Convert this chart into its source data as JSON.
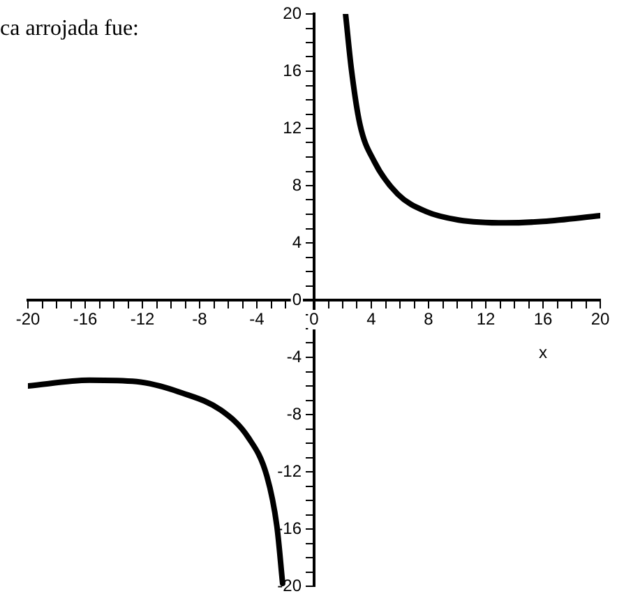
{
  "chart_data": {
    "type": "line",
    "xlabel": "x",
    "annotations": [
      "ca arrojada fue:"
    ],
    "series": [
      {
        "color": "#000000",
        "x": [
          2.2,
          2.6,
          3.2,
          4.2,
          5.85,
          7.8,
          10.1,
          13.4,
          16,
          20
        ],
        "values": [
          20,
          16.2,
          12.3,
          9.7,
          7.4,
          6.2,
          5.6,
          5.4,
          5.5,
          5.9
        ]
      },
      {
        "color": "#000000",
        "x": [
          -20,
          -15.7,
          -12.4,
          -9.2,
          -6.5,
          -4.6,
          -3.3,
          -2.6,
          -2.2
        ],
        "values": [
          -6,
          -5.6,
          -5.7,
          -6.5,
          -7.7,
          -9.6,
          -12.3,
          -15.8,
          -19.8
        ]
      }
    ],
    "xlim": [
      -20,
      20
    ],
    "ylim": [
      -20,
      20
    ],
    "xticks": [
      -20,
      {
        "value": -19,
        "label": null
      },
      {
        "value": -18,
        "label": null
      },
      {
        "value": -17,
        "label": null
      },
      -16,
      {
        "value": -15,
        "label": null
      },
      {
        "value": -14,
        "label": null
      },
      {
        "value": -13,
        "label": null
      },
      -12,
      {
        "value": -11,
        "label": null
      },
      {
        "value": -10,
        "label": null
      },
      {
        "value": -9,
        "label": null
      },
      -8,
      {
        "value": -7,
        "label": null
      },
      {
        "value": -6,
        "label": null
      },
      {
        "value": -5,
        "label": null
      },
      -4,
      {
        "value": -3,
        "label": null
      },
      {
        "value": -2,
        "label": null
      },
      {
        "value": -1,
        "label": null
      },
      0,
      {
        "value": 1,
        "label": null
      },
      {
        "value": 2,
        "label": null
      },
      {
        "value": 3,
        "label": null
      },
      4,
      {
        "value": 5,
        "label": null
      },
      {
        "value": 6,
        "label": null
      },
      {
        "value": 7,
        "label": null
      },
      8,
      {
        "value": 9,
        "label": null
      },
      {
        "value": 10,
        "label": null
      },
      {
        "value": 11,
        "label": null
      },
      12,
      {
        "value": 13,
        "label": null
      },
      {
        "value": 14,
        "label": null
      },
      {
        "value": 15,
        "label": null
      },
      16,
      {
        "value": 17,
        "label": null
      },
      {
        "value": 18,
        "label": null
      },
      {
        "value": 19,
        "label": null
      },
      20
    ],
    "yticks": [
      -20,
      {
        "value": -19,
        "label": null
      },
      {
        "value": -18,
        "label": null
      },
      {
        "value": -17,
        "label": null
      },
      -16,
      {
        "value": -15,
        "label": null
      },
      {
        "value": -14,
        "label": null
      },
      {
        "value": -13,
        "label": null
      },
      -12,
      {
        "value": -11,
        "label": null
      },
      {
        "value": -10,
        "label": null
      },
      {
        "value": -9,
        "label": null
      },
      -8,
      {
        "value": -7,
        "label": null
      },
      {
        "value": -6,
        "label": null
      },
      {
        "value": -5,
        "label": null
      },
      -4,
      {
        "value": -3,
        "label": null
      },
      {
        "value": -2,
        "label": null
      },
      {
        "value": -1,
        "label": null
      },
      0,
      {
        "value": 1,
        "label": null
      },
      {
        "value": 2,
        "label": null
      },
      {
        "value": 3,
        "label": null
      },
      4,
      {
        "value": 5,
        "label": null
      },
      {
        "value": 6,
        "label": null
      },
      {
        "value": 7,
        "label": null
      },
      8,
      {
        "value": 9,
        "label": null
      },
      {
        "value": 10,
        "label": null
      },
      {
        "value": 11,
        "label": null
      },
      12,
      {
        "value": 13,
        "label": null
      },
      {
        "value": 14,
        "label": null
      },
      {
        "value": 15,
        "label": null
      },
      16,
      {
        "value": 17,
        "label": null
      },
      {
        "value": 18,
        "label": null
      },
      {
        "value": 19,
        "label": null
      },
      20
    ],
    "grid": false,
    "legend": false,
    "marker": "none",
    "line_style": "solid"
  }
}
